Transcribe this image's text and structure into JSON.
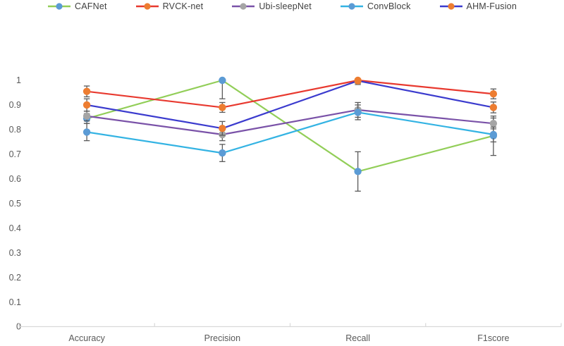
{
  "chart_data": {
    "type": "line",
    "title": "",
    "categories": [
      "Accuracy",
      "Precision",
      "Recall",
      "F1score"
    ],
    "ylim": [
      0,
      1
    ],
    "y_ticks": [
      "0",
      "0.1",
      "0.2",
      "0.3",
      "0.4",
      "0.5",
      "0.6",
      "0.7",
      "0.8",
      "0.9",
      "1"
    ],
    "grid": false,
    "legend_position": "top",
    "colors": {
      "error_bar": "#595959",
      "axis_line": "#D9D9D9",
      "tick_label": "#595959",
      "legend_text": "#3f3f3f",
      "background": "#ffffff"
    },
    "series": [
      {
        "name": "CAFNet",
        "line_color": "#92CE58",
        "marker_color": "#5B9BD5",
        "values": [
          0.845,
          1.0,
          0.63,
          0.775
        ],
        "error": [
          0.02,
          0.075,
          0.08,
          0.08
        ]
      },
      {
        "name": "RVCK-net",
        "line_color": "#E8392F",
        "marker_color": "#ED7D31",
        "values": [
          0.955,
          0.89,
          1.0,
          0.945
        ],
        "error": [
          0.022,
          0.02,
          0.012,
          0.02
        ]
      },
      {
        "name": "Ubi-sleepNet",
        "line_color": "#7A52A8",
        "marker_color": "#A5A5A5",
        "values": [
          0.855,
          0.78,
          0.88,
          0.825
        ],
        "error": [
          0.02,
          0.025,
          0.03,
          0.022
        ]
      },
      {
        "name": "ConvBlock",
        "line_color": "#33B3E3",
        "marker_color": "#5B9BD5",
        "values": [
          0.79,
          0.705,
          0.87,
          0.78
        ],
        "error": [
          0.035,
          0.035,
          0.03,
          0.03
        ]
      },
      {
        "name": "AHM-Fusion",
        "line_color": "#3B3BCE",
        "marker_color": "#ED7D31",
        "values": [
          0.9,
          0.805,
          0.998,
          0.89
        ],
        "error": [
          0.025,
          0.028,
          0.015,
          0.022
        ]
      }
    ]
  }
}
